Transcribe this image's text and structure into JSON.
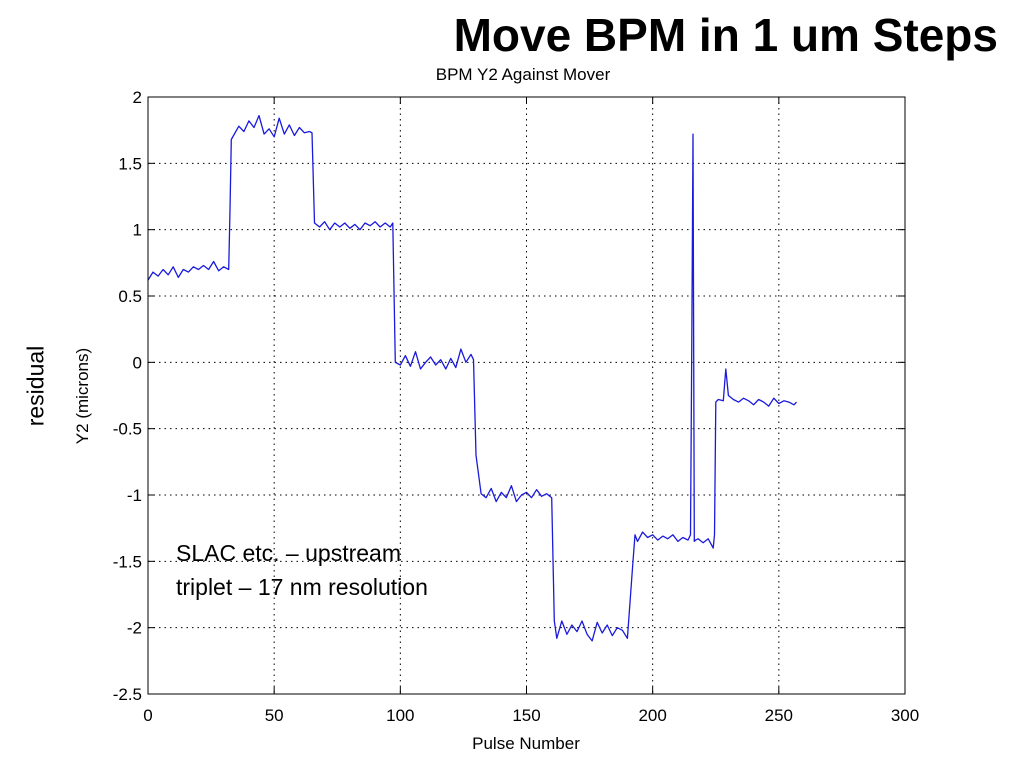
{
  "slide": {
    "title": "Move BPM in 1 um Steps",
    "side_label": "residual",
    "annotation_lines": [
      "SLAC etc. – upstream",
      "triplet – 17 nm resolution"
    ]
  },
  "chart_data": {
    "type": "line",
    "title": "BPM Y2 Against Mover",
    "xlabel": "Pulse Number",
    "ylabel": "Y2 (microns)",
    "xlim": [
      0,
      300
    ],
    "ylim": [
      -2.5,
      2
    ],
    "xticks": [
      0,
      50,
      100,
      150,
      200,
      250,
      300
    ],
    "xtick_labels": [
      "0",
      "50",
      "100",
      "150",
      "200",
      "250",
      "300"
    ],
    "yticks": [
      2,
      1.5,
      1,
      0.5,
      0,
      -0.5,
      -1,
      -1.5,
      -2,
      -2.5
    ],
    "ytick_labels": [
      "2",
      "1.5",
      "1",
      "0.5",
      "0",
      "-0.5",
      "-1",
      "-1.5",
      "-2",
      "-2.5"
    ],
    "grid": true,
    "line_color": "#1a1adc",
    "series": [
      {
        "x": [
          0,
          2,
          4,
          6,
          8,
          10,
          12,
          14,
          16,
          18,
          20,
          22,
          24,
          26,
          28,
          30,
          32,
          32.5,
          33,
          36,
          38,
          40,
          42,
          44,
          46,
          48,
          50,
          52,
          54,
          56,
          58,
          60,
          62,
          64,
          65,
          66,
          68,
          70,
          72,
          74,
          76,
          78,
          80,
          82,
          84,
          86,
          88,
          90,
          92,
          94,
          96,
          97,
          98,
          100,
          102,
          104,
          106,
          108,
          110,
          112,
          114,
          116,
          118,
          120,
          122,
          124,
          126,
          128,
          129,
          130,
          132,
          134,
          136,
          138,
          140,
          142,
          144,
          146,
          148,
          150,
          152,
          154,
          156,
          158,
          160,
          161,
          162,
          164,
          166,
          168,
          170,
          172,
          174,
          176,
          178,
          180,
          182,
          184,
          186,
          188,
          190,
          192,
          193,
          194,
          196,
          198,
          200,
          202,
          204,
          206,
          208,
          210,
          212,
          214,
          215,
          215.5,
          216,
          216.5,
          217,
          218,
          220,
          222,
          224,
          224.5,
          225,
          226,
          228,
          229,
          230,
          232,
          234,
          236,
          238,
          240,
          242,
          244,
          246,
          248,
          250,
          252,
          254,
          256,
          257
        ],
        "y": [
          0.62,
          0.68,
          0.65,
          0.7,
          0.66,
          0.72,
          0.64,
          0.7,
          0.68,
          0.72,
          0.7,
          0.73,
          0.7,
          0.76,
          0.69,
          0.72,
          0.7,
          1.15,
          1.68,
          1.78,
          1.74,
          1.82,
          1.77,
          1.86,
          1.72,
          1.76,
          1.7,
          1.84,
          1.72,
          1.79,
          1.71,
          1.77,
          1.73,
          1.74,
          1.73,
          1.05,
          1.02,
          1.06,
          1.0,
          1.05,
          1.02,
          1.05,
          1.01,
          1.04,
          1.0,
          1.05,
          1.03,
          1.06,
          1.02,
          1.05,
          1.02,
          1.05,
          0.0,
          -0.02,
          0.05,
          -0.03,
          0.08,
          -0.05,
          0.0,
          0.04,
          -0.02,
          0.02,
          -0.05,
          0.03,
          -0.04,
          0.1,
          0.0,
          0.06,
          0.02,
          -0.7,
          -0.99,
          -1.02,
          -0.95,
          -1.05,
          -0.98,
          -1.02,
          -0.93,
          -1.05,
          -1.0,
          -0.98,
          -1.02,
          -0.96,
          -1.01,
          -0.99,
          -1.02,
          -1.95,
          -2.08,
          -1.95,
          -2.05,
          -1.98,
          -2.03,
          -1.95,
          -2.05,
          -2.1,
          -1.96,
          -2.04,
          -1.98,
          -2.06,
          -2.0,
          -2.02,
          -2.08,
          -1.55,
          -1.3,
          -1.35,
          -1.28,
          -1.32,
          -1.3,
          -1.34,
          -1.31,
          -1.33,
          -1.3,
          -1.35,
          -1.32,
          -1.34,
          -1.3,
          0.15,
          1.72,
          -1.35,
          -1.34,
          -1.33,
          -1.36,
          -1.33,
          -1.4,
          -1.3,
          -0.3,
          -0.28,
          -0.29,
          -0.05,
          -0.25,
          -0.28,
          -0.3,
          -0.27,
          -0.29,
          -0.32,
          -0.28,
          -0.3,
          -0.33,
          -0.27,
          -0.31,
          -0.29,
          -0.3,
          -0.32,
          -0.3
        ]
      }
    ]
  }
}
